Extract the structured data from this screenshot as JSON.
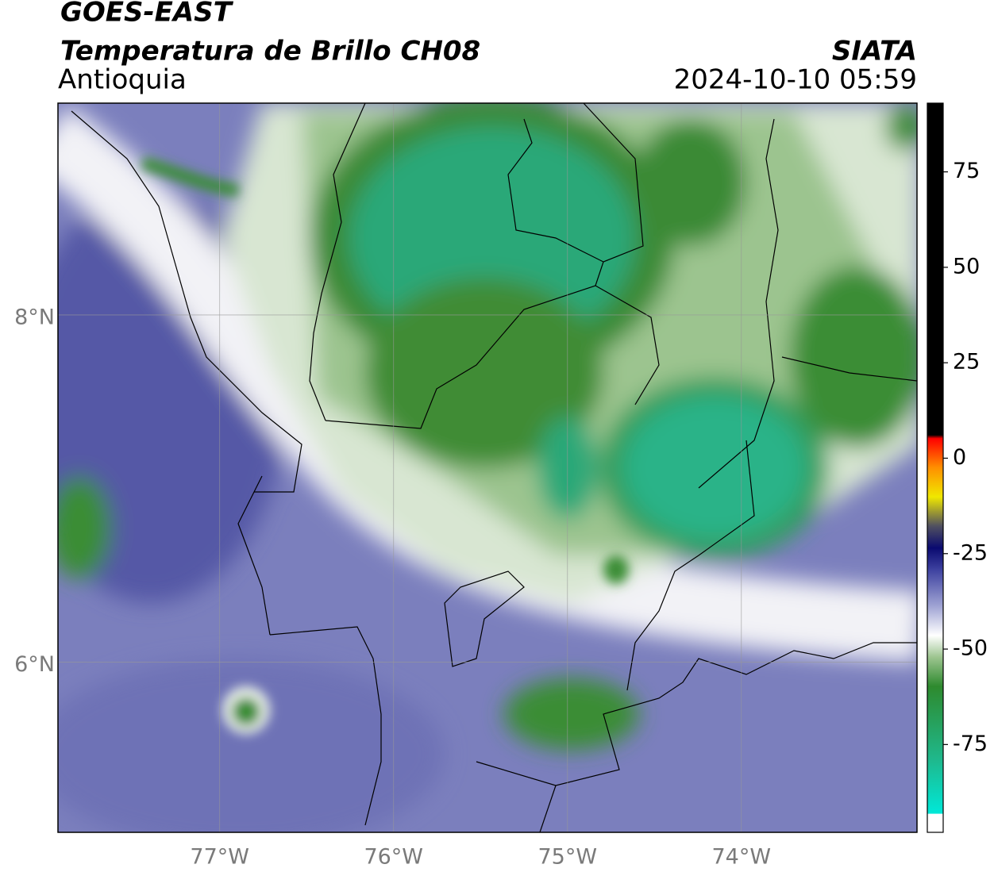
{
  "header": {
    "title": "GOES-EAST",
    "subtitle": "Temperatura de Brillo CH08",
    "region": "Antioquia",
    "source": "SIATA",
    "datetime": "2024-10-10 05:59"
  },
  "map": {
    "xlim": [
      -77.93,
      -72.99
    ],
    "ylim": [
      5.02,
      9.22
    ],
    "xticks": [
      {
        "value": -77,
        "label": "77°W"
      },
      {
        "value": -76,
        "label": "76°W"
      },
      {
        "value": -75,
        "label": "75°W"
      },
      {
        "value": -74,
        "label": "74°W"
      }
    ],
    "yticks": [
      {
        "value": 8,
        "label": "8°N"
      },
      {
        "value": 6,
        "label": "6°N"
      }
    ]
  },
  "colorbar": {
    "lim": [
      -98,
      93
    ],
    "ticks": [
      75,
      50,
      25,
      0,
      -25,
      -50,
      -75
    ]
  }
}
